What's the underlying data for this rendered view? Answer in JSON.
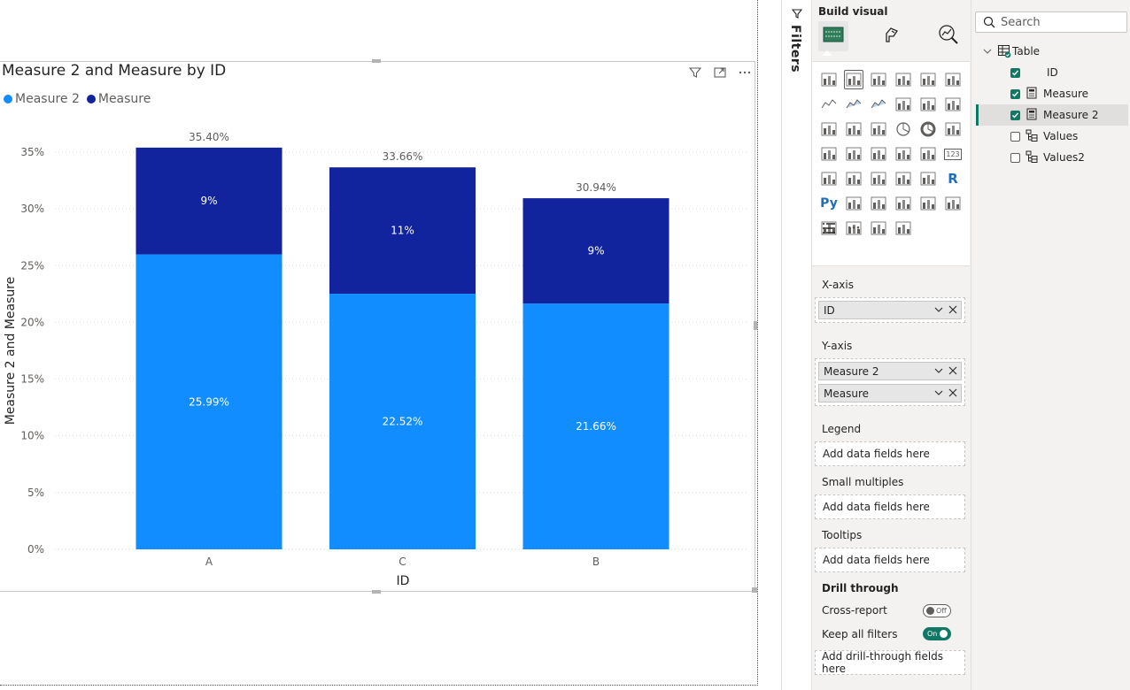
{
  "visual": {
    "title": "Measure 2 and Measure by ID",
    "legend": [
      {
        "label": "Measure 2",
        "color": "#118DFF"
      },
      {
        "label": "Measure",
        "color": "#12239E"
      }
    ]
  },
  "chart_data": {
    "type": "bar",
    "stacked": true,
    "title": "Measure 2 and Measure by ID",
    "xlabel": "ID",
    "ylabel": "Measure 2 and Measure",
    "categories": [
      "A",
      "C",
      "B"
    ],
    "series": [
      {
        "name": "Measure 2",
        "color": "#118DFF",
        "values": [
          25.99,
          22.52,
          21.66
        ],
        "labels": [
          "25.99%",
          "22.52%",
          "21.66%"
        ]
      },
      {
        "name": "Measure",
        "color": "#12239E",
        "values": [
          9.41,
          11.14,
          9.28
        ],
        "labels": [
          "9%",
          "11%",
          "9%"
        ]
      }
    ],
    "totals": [
      "35.40%",
      "33.66%",
      "30.94%"
    ],
    "yticks": [
      "0%",
      "5%",
      "10%",
      "15%",
      "20%",
      "25%",
      "30%",
      "35%"
    ],
    "ylim": [
      0,
      35
    ],
    "grid": true,
    "legend_position": "top-left"
  },
  "filters": {
    "label": "Filters"
  },
  "build": {
    "title": "Build visual",
    "wells": {
      "x_axis": {
        "label": "X-axis",
        "fields": [
          "ID"
        ]
      },
      "y_axis": {
        "label": "Y-axis",
        "fields": [
          "Measure 2",
          "Measure"
        ]
      },
      "legend": {
        "label": "Legend",
        "placeholder": "Add data fields here"
      },
      "small_multiples": {
        "label": "Small multiples",
        "placeholder": "Add data fields here"
      },
      "tooltips": {
        "label": "Tooltips",
        "placeholder": "Add data fields here"
      }
    },
    "drill": {
      "title": "Drill through",
      "cross_report": {
        "label": "Cross-report",
        "state": "Off"
      },
      "keep_filters": {
        "label": "Keep all filters",
        "state": "On"
      },
      "placeholder": "Add drill-through fields here"
    },
    "gallery_more": "···",
    "gallery_text": {
      "py": "Py",
      "r": "R",
      "num": "123"
    }
  },
  "data_pane": {
    "search_placeholder": "Search",
    "table": {
      "name": "Table",
      "icon": "table-icon"
    },
    "fields": [
      {
        "name": "ID",
        "checked": true,
        "icon": "none"
      },
      {
        "name": "Measure",
        "checked": true,
        "icon": "calculator-icon"
      },
      {
        "name": "Measure 2",
        "checked": true,
        "icon": "calculator-icon"
      },
      {
        "name": "Values",
        "checked": false,
        "icon": "hierarchy-icon"
      },
      {
        "name": "Values2",
        "checked": false,
        "icon": "hierarchy-icon"
      }
    ]
  }
}
